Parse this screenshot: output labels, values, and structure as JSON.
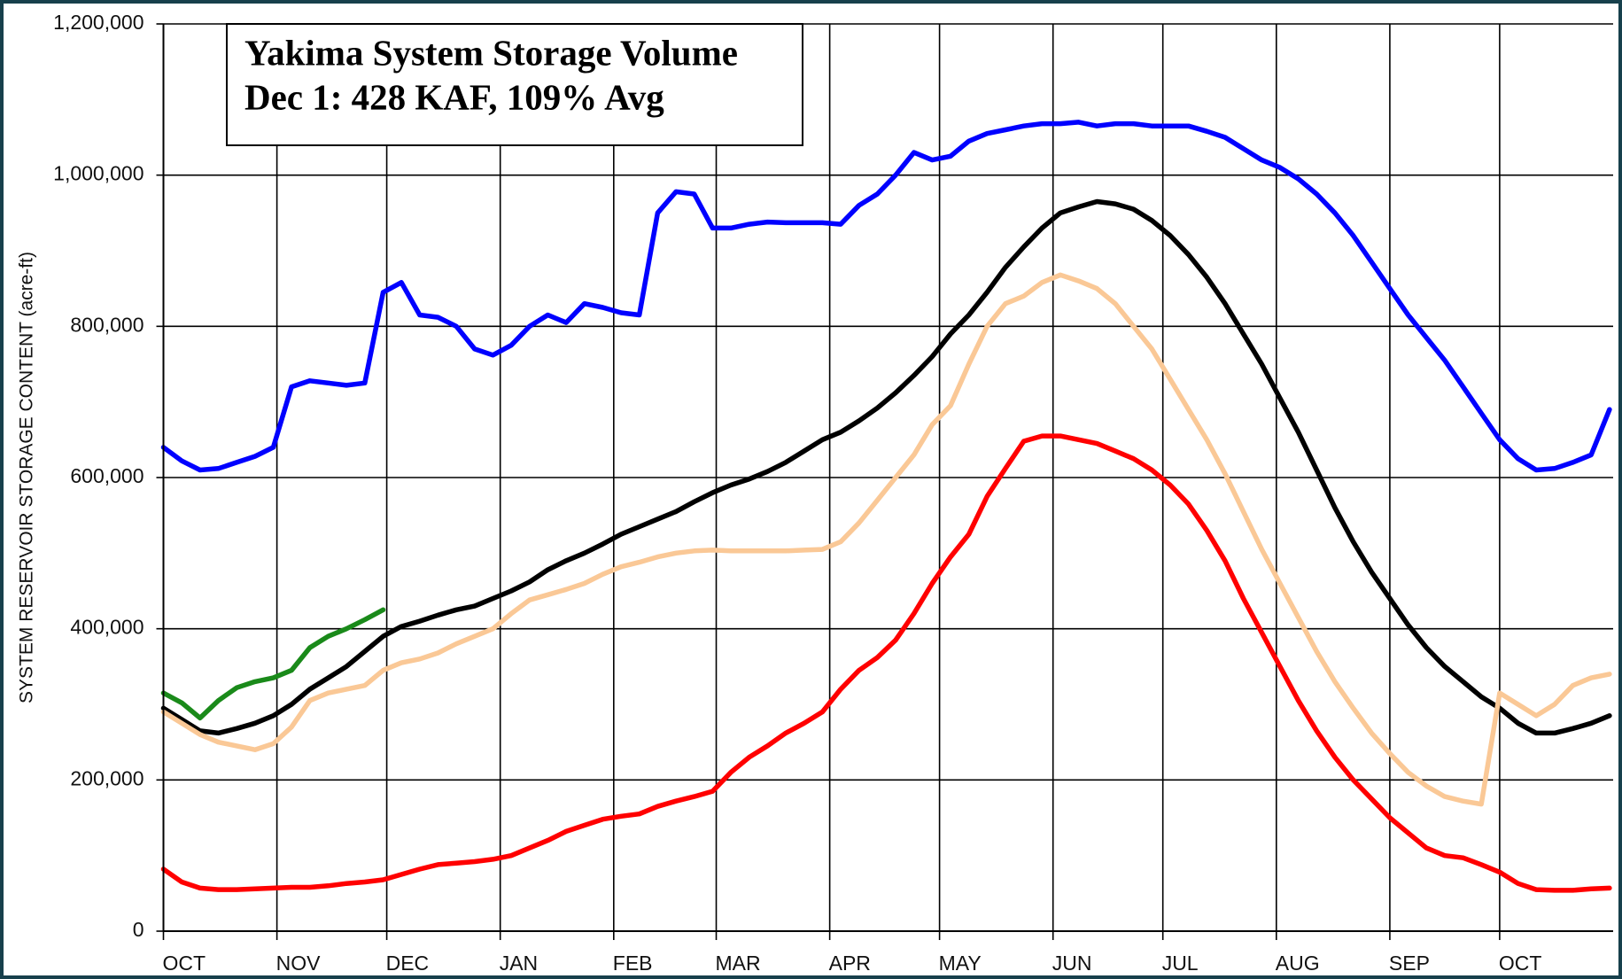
{
  "chart_data": {
    "type": "line",
    "title": "Yakima System Storage Volume",
    "subtitle": "Dec 1: 428 KAF, 109% Avg",
    "y_label": "SYSTEM RESERVOIR STORAGE CONTENT (acre-ft)",
    "grid": true,
    "xlim": [
      0,
      396
    ],
    "ylim": [
      0,
      1200000
    ],
    "xticks": [
      {
        "value": 0,
        "label": "OCT"
      },
      {
        "value": 31,
        "label": "NOV"
      },
      {
        "value": 61,
        "label": "DEC"
      },
      {
        "value": 92,
        "label": "JAN"
      },
      {
        "value": 123,
        "label": "FEB"
      },
      {
        "value": 151,
        "label": "MAR"
      },
      {
        "value": 182,
        "label": "APR"
      },
      {
        "value": 212,
        "label": "MAY"
      },
      {
        "value": 243,
        "label": "JUN"
      },
      {
        "value": 273,
        "label": "JUL"
      },
      {
        "value": 304,
        "label": "AUG"
      },
      {
        "value": 335,
        "label": "SEP"
      },
      {
        "value": 365,
        "label": "OCT"
      }
    ],
    "yticks": [
      0,
      {
        "value": 200000,
        "label": "200,000"
      },
      {
        "value": 400000,
        "label": "400,000"
      },
      {
        "value": 600000,
        "label": "600,000"
      },
      {
        "value": 800000,
        "label": "800,000"
      },
      {
        "value": 1000000,
        "label": "1,000,000"
      },
      {
        "value": 1200000,
        "label": "1,200,000"
      }
    ],
    "x": [
      0,
      5,
      10,
      15,
      20,
      25,
      30,
      35,
      40,
      45,
      50,
      55,
      60,
      65,
      70,
      75,
      80,
      85,
      90,
      95,
      100,
      105,
      110,
      115,
      120,
      125,
      130,
      135,
      140,
      145,
      150,
      155,
      160,
      165,
      170,
      175,
      180,
      185,
      190,
      195,
      200,
      205,
      210,
      215,
      220,
      225,
      230,
      235,
      240,
      245,
      250,
      255,
      260,
      265,
      270,
      275,
      280,
      285,
      290,
      295,
      300,
      305,
      310,
      315,
      320,
      325,
      330,
      335,
      340,
      345,
      350,
      355,
      360,
      365,
      370,
      375,
      380,
      385,
      390,
      395
    ],
    "series": [
      {
        "color": "#0000ff",
        "values": [
          640000,
          622000,
          610000,
          612000,
          620000,
          628000,
          640000,
          720000,
          728000,
          725000,
          722000,
          725000,
          845000,
          858000,
          815000,
          812000,
          800000,
          770000,
          762000,
          775000,
          800000,
          815000,
          805000,
          830000,
          825000,
          818000,
          815000,
          950000,
          978000,
          975000,
          930000,
          930000,
          935000,
          938000,
          937000,
          937000,
          937000,
          935000,
          960000,
          975000,
          1000000,
          1030000,
          1020000,
          1025000,
          1045000,
          1055000,
          1060000,
          1065000,
          1068000,
          1068000,
          1070000,
          1065000,
          1068000,
          1068000,
          1065000,
          1065000,
          1065000,
          1058000,
          1050000,
          1035000,
          1020000,
          1010000,
          995000,
          975000,
          950000,
          920000,
          885000,
          850000,
          815000,
          785000,
          755000,
          720000,
          685000,
          650000,
          625000,
          610000,
          612000,
          620000,
          630000,
          690000
        ]
      },
      {
        "color": "#000000",
        "values": [
          295000,
          280000,
          265000,
          262000,
          268000,
          275000,
          285000,
          300000,
          320000,
          335000,
          350000,
          370000,
          390000,
          403000,
          410000,
          418000,
          425000,
          430000,
          440000,
          450000,
          462000,
          478000,
          490000,
          500000,
          512000,
          525000,
          535000,
          545000,
          555000,
          568000,
          580000,
          590000,
          598000,
          608000,
          620000,
          635000,
          650000,
          660000,
          675000,
          692000,
          712000,
          735000,
          760000,
          790000,
          815000,
          845000,
          878000,
          905000,
          930000,
          950000,
          958000,
          965000,
          962000,
          955000,
          940000,
          920000,
          895000,
          865000,
          830000,
          790000,
          750000,
          705000,
          660000,
          610000,
          560000,
          515000,
          475000,
          440000,
          405000,
          375000,
          350000,
          330000,
          310000,
          295000,
          275000,
          262000,
          262000,
          268000,
          275000,
          285000
        ]
      },
      {
        "color": "#fac896",
        "values": [
          290000,
          275000,
          260000,
          250000,
          245000,
          240000,
          248000,
          270000,
          305000,
          315000,
          320000,
          325000,
          345000,
          355000,
          360000,
          368000,
          380000,
          390000,
          400000,
          420000,
          438000,
          445000,
          452000,
          460000,
          472000,
          482000,
          488000,
          495000,
          500000,
          503000,
          504000,
          503000,
          503000,
          503000,
          503000,
          504000,
          505000,
          515000,
          540000,
          570000,
          600000,
          630000,
          670000,
          695000,
          750000,
          800000,
          830000,
          840000,
          858000,
          868000,
          860000,
          850000,
          830000,
          800000,
          770000,
          730000,
          690000,
          650000,
          605000,
          555000,
          505000,
          460000,
          415000,
          370000,
          330000,
          295000,
          262000,
          235000,
          210000,
          192000,
          178000,
          172000,
          168000,
          315000,
          300000,
          285000,
          300000,
          325000,
          335000,
          340000
        ]
      },
      {
        "color": "#ff0000",
        "values": [
          82000,
          65000,
          57000,
          55000,
          55000,
          56000,
          57000,
          58000,
          58000,
          60000,
          63000,
          65000,
          68000,
          75000,
          82000,
          88000,
          90000,
          92000,
          95000,
          100000,
          110000,
          120000,
          132000,
          140000,
          148000,
          152000,
          155000,
          165000,
          172000,
          178000,
          185000,
          210000,
          230000,
          245000,
          262000,
          275000,
          290000,
          320000,
          345000,
          362000,
          385000,
          420000,
          460000,
          495000,
          525000,
          575000,
          612000,
          648000,
          655000,
          655000,
          650000,
          645000,
          635000,
          625000,
          610000,
          590000,
          565000,
          530000,
          490000,
          440000,
          395000,
          350000,
          305000,
          265000,
          230000,
          200000,
          175000,
          150000,
          130000,
          110000,
          100000,
          97000,
          88000,
          78000,
          63000,
          55000,
          54000,
          54000,
          56000,
          57000
        ]
      },
      {
        "color": "#1a8a1a",
        "values": [
          315000,
          302000,
          282000,
          305000,
          322000,
          330000,
          335000,
          345000,
          375000,
          390000,
          400000,
          412000,
          425000,
          null,
          null,
          null,
          null,
          null,
          null,
          null,
          null,
          null,
          null,
          null,
          null,
          null,
          null,
          null,
          null,
          null,
          null,
          null,
          null,
          null,
          null,
          null,
          null,
          null,
          null,
          null,
          null,
          null,
          null,
          null,
          null,
          null,
          null,
          null,
          null,
          null,
          null,
          null,
          null,
          null,
          null,
          null,
          null,
          null,
          null,
          null,
          null,
          null,
          null,
          null,
          null,
          null,
          null,
          null,
          null,
          null,
          null,
          null,
          null,
          null,
          null,
          null,
          null,
          null,
          null,
          null
        ]
      }
    ]
  }
}
